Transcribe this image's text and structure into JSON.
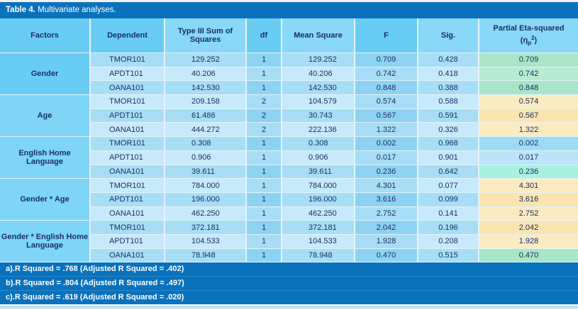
{
  "title": {
    "bold": "Table 4.",
    "rest": " Multivariate analyses."
  },
  "columns": [
    {
      "key": "factors",
      "label": "Factors",
      "header_shade": "dark"
    },
    {
      "key": "dependent",
      "label": "Dependent",
      "header_shade": "dark"
    },
    {
      "key": "type3",
      "label": "Type III Sum of Squares",
      "header_shade": "light"
    },
    {
      "key": "df",
      "label": "df",
      "header_shade": "dark"
    },
    {
      "key": "mean_square",
      "label": "Mean Square",
      "header_shade": "light"
    },
    {
      "key": "f",
      "label": "F",
      "header_shade": "dark"
    },
    {
      "key": "sig",
      "label": "Sig.",
      "header_shade": "light"
    },
    {
      "key": "eta",
      "label": "Partial Eta-squared",
      "eta_prefix": "(η",
      "eta_sub": "p",
      "eta_sup": "2",
      "eta_suffix": ")",
      "header_shade": "light"
    }
  ],
  "groups": [
    {
      "factor": "Gender",
      "shade": "dark",
      "rows": [
        {
          "dependent": "TMOR101",
          "type3": "129.252",
          "df": "1",
          "mean_square": "129.252",
          "f": "0.709",
          "sig": "0.428",
          "eta": "0.709",
          "eta_color": "green"
        },
        {
          "dependent": "APDT101",
          "type3": "40.206",
          "df": "1",
          "mean_square": "40.206",
          "f": "0.742",
          "sig": "0.418",
          "eta": "0.742",
          "eta_color": "green"
        },
        {
          "dependent": "OANA101",
          "type3": "142.530",
          "df": "1",
          "mean_square": "142.530",
          "f": "0.848",
          "sig": "0.388",
          "eta": "0.848",
          "eta_color": "green"
        }
      ]
    },
    {
      "factor": "Age",
      "shade": "light",
      "rows": [
        {
          "dependent": "TMOR101",
          "type3": "209.158",
          "df": "2",
          "mean_square": "104.579",
          "f": "0.574",
          "sig": "0.588",
          "eta": "0.574",
          "eta_color": "yellow"
        },
        {
          "dependent": "APDT101",
          "type3": "61.486",
          "df": "2",
          "mean_square": "30.743",
          "f": "0.567",
          "sig": "0.591",
          "eta": "0.567",
          "eta_color": "yellow"
        },
        {
          "dependent": "OANA101",
          "type3": "444.272",
          "df": "2",
          "mean_square": "222.136",
          "f": "1.322",
          "sig": "0.326",
          "eta": "1.322",
          "eta_color": "yellow"
        }
      ]
    },
    {
      "factor": "English Home Language",
      "shade": "light",
      "rows": [
        {
          "dependent": "TMOR101",
          "type3": "0.308",
          "df": "1",
          "mean_square": "0.308",
          "f": "0.002",
          "sig": "0.968",
          "eta": "0.002",
          "eta_color": "blue"
        },
        {
          "dependent": "APDT101",
          "type3": "0.906",
          "df": "1",
          "mean_square": "0.906",
          "f": "0.017",
          "sig": "0.901",
          "eta": "0.017",
          "eta_color": "blue"
        },
        {
          "dependent": "OANA101",
          "type3": "39.611",
          "df": "1",
          "mean_square": "39.611",
          "f": "0.236",
          "sig": "0.642",
          "eta": "0.236",
          "eta_color": "cyan"
        }
      ]
    },
    {
      "factor": "Gender * Age",
      "shade": "light",
      "rows": [
        {
          "dependent": "TMOR101",
          "type3": "784.000",
          "df": "1",
          "mean_square": "784.000",
          "f": "4.301",
          "sig": "0.077",
          "eta": "4.301",
          "eta_color": "yellow"
        },
        {
          "dependent": "APDT101",
          "type3": "196.000",
          "df": "1",
          "mean_square": "196.000",
          "f": "3.616",
          "sig": "0.099",
          "eta": "3.616",
          "eta_color": "yellow"
        },
        {
          "dependent": "OANA101",
          "type3": "462.250",
          "df": "1",
          "mean_square": "462.250",
          "f": "2.752",
          "sig": "0.141",
          "eta": "2.752",
          "eta_color": "yellow"
        }
      ]
    },
    {
      "factor": "Gender * English Home Language",
      "shade": "light",
      "rows": [
        {
          "dependent": "TMOR101",
          "type3": "372.181",
          "df": "1",
          "mean_square": "372.181",
          "f": "2.042",
          "sig": "0.196",
          "eta": "2.042",
          "eta_color": "yellow"
        },
        {
          "dependent": "APDT101",
          "type3": "104.533",
          "df": "1",
          "mean_square": "104.533",
          "f": "1.928",
          "sig": "0.208",
          "eta": "1.928",
          "eta_color": "yellow"
        },
        {
          "dependent": "OANA101",
          "type3": "78.948",
          "df": "1",
          "mean_square": "78.948",
          "f": "0.470",
          "sig": "0.515",
          "eta": "0.470",
          "eta_color": "green"
        }
      ]
    }
  ],
  "footnotes": [
    "a).R Squared = .768 (Adjusted R Squared = .402)",
    "b).R Squared = .804 (Adjusted R Squared = .497)",
    "c).R Squared = .619 (Adjusted R Squared = .020)"
  ],
  "colors": {
    "title_bar_bg": "#0A72BC",
    "footer_bg": "#0A72BC",
    "header_dark": "#69CDF3",
    "header_light": "#89D8F8",
    "factor_dark": "#69CDF3",
    "factor_light": "#7ED5F6",
    "row_odd": "#A7DDF5",
    "row_even": "#C7EAFB",
    "row_dark_odd": "#8CD3F2",
    "row_dark_even": "#A7DDF5",
    "eta_green_odd": "#A9E5C6",
    "eta_green_even": "#B9EBD3",
    "eta_yellow_odd": "#FAE5AE",
    "eta_yellow_even": "#FBEBC1",
    "eta_blue_odd": "#9FDAF4",
    "eta_blue_even": "#BBE5F8",
    "eta_cyan": "#A7F2DD",
    "text": "#1B2F66",
    "grid_line": "#E3F3FD",
    "bottom_strip": "#B9E2F6"
  }
}
